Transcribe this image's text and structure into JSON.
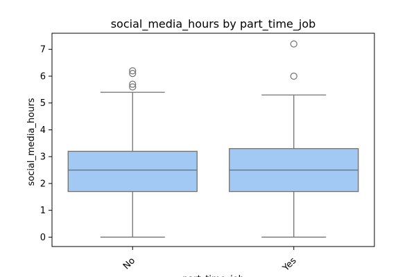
{
  "chart_data": {
    "type": "box",
    "title": "social_media_hours by part_time_job",
    "xlabel": "part_time_job",
    "ylabel": "social_media_hours",
    "ylim": [
      -0.35,
      7.6
    ],
    "yticks": [
      0,
      1,
      2,
      3,
      4,
      5,
      6,
      7
    ],
    "categories": [
      "No",
      "Yes"
    ],
    "boxes": [
      {
        "category": "No",
        "whisker_low": 0.0,
        "q1": 1.7,
        "median": 2.5,
        "q3": 3.2,
        "whisker_high": 5.4,
        "outliers": [
          5.6,
          5.7,
          6.1,
          6.2
        ]
      },
      {
        "category": "Yes",
        "whisker_low": 0.0,
        "q1": 1.7,
        "median": 2.5,
        "q3": 3.3,
        "whisker_high": 5.3,
        "outliers": [
          6.0,
          7.2
        ]
      }
    ],
    "box_color": "#a1c9f4",
    "line_color": "#707070",
    "grid": false
  }
}
